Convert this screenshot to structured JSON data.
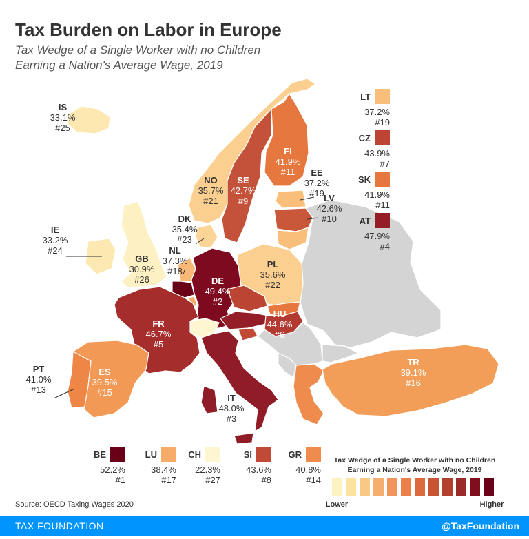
{
  "title": "Tax Burden on Labor in Europe",
  "subtitle_line1": "Tax Wedge of a Single Worker with no Children",
  "subtitle_line2": "Earning a Nation's Average Wage, 2019",
  "source": "Source: OECD Taxing Wages 2020",
  "footer": {
    "brand": "TAX FOUNDATION",
    "handle": "@TaxFoundation"
  },
  "colors": {
    "no_data": "#d4d4d4",
    "border": "#ffffff",
    "footer": "#0094ff",
    "text_dark": "#333333",
    "text_light": "#ffffff"
  },
  "legend": {
    "title_line1": "Tax Wedge of a Single Worker with no Children",
    "title_line2": "Earning a Nation's Average Wage, 2019",
    "low_label": "Lower",
    "high_label": "Higher",
    "scale": [
      "#fdf3c0",
      "#fce4a0",
      "#f9c884",
      "#f6ae6e",
      "#f2935a",
      "#ec7e48",
      "#dc6a3c",
      "#c95434",
      "#b3402e",
      "#9a2a2a",
      "#800f1e",
      "#6a0018"
    ]
  },
  "countries": [
    {
      "code": "IS",
      "value": "33.1%",
      "rank": "#25",
      "color": "#fce8b0"
    },
    {
      "code": "NO",
      "value": "35.7%",
      "rank": "#21",
      "color": "#fbcf90"
    },
    {
      "code": "SE",
      "value": "42.7%",
      "rank": "#9",
      "color": "#c4523a"
    },
    {
      "code": "FI",
      "value": "41.9%",
      "rank": "#11",
      "color": "#e6783f"
    },
    {
      "code": "EE",
      "value": "37.2%",
      "rank": "#19",
      "color": "#f9bf7a"
    },
    {
      "code": "LV",
      "value": "42.6%",
      "rank": "#10",
      "color": "#c9573a"
    },
    {
      "code": "LT",
      "value": "37.2%",
      "rank": "#19",
      "color": "#f9bf7a"
    },
    {
      "code": "DK",
      "value": "35.4%",
      "rank": "#23",
      "color": "#fbd598"
    },
    {
      "code": "IE",
      "value": "33.2%",
      "rank": "#24",
      "color": "#fce8b0"
    },
    {
      "code": "GB",
      "value": "30.9%",
      "rank": "#26",
      "color": "#fdf1c4"
    },
    {
      "code": "NL",
      "value": "37.3%",
      "rank": "#18",
      "color": "#f8b878"
    },
    {
      "code": "DE",
      "value": "49.4%",
      "rank": "#2",
      "color": "#7d0a1f"
    },
    {
      "code": "PL",
      "value": "35.6%",
      "rank": "#22",
      "color": "#fbcf90"
    },
    {
      "code": "FR",
      "value": "46.7%",
      "rank": "#5",
      "color": "#a52d2c"
    },
    {
      "code": "HU",
      "value": "44.6%",
      "rank": "#6",
      "color": "#b33a30"
    },
    {
      "code": "PT",
      "value": "41.0%",
      "rank": "#13",
      "color": "#ee8646"
    },
    {
      "code": "ES",
      "value": "39.5%",
      "rank": "#15",
      "color": "#f29a55"
    },
    {
      "code": "IT",
      "value": "48.0%",
      "rank": "#3",
      "color": "#8f1c26"
    },
    {
      "code": "TR",
      "value": "39.1%",
      "rank": "#16",
      "color": "#f29e58"
    },
    {
      "code": "CZ",
      "value": "43.9%",
      "rank": "#7",
      "color": "#bb4532"
    },
    {
      "code": "SK",
      "value": "41.9%",
      "rank": "#11",
      "color": "#e6783f"
    },
    {
      "code": "AT",
      "value": "47.9%",
      "rank": "#4",
      "color": "#931e27"
    },
    {
      "code": "BE",
      "value": "52.2%",
      "rank": "#1",
      "color": "#6a0018"
    },
    {
      "code": "LU",
      "value": "38.4%",
      "rank": "#17",
      "color": "#f6ac68"
    },
    {
      "code": "CH",
      "value": "22.3%",
      "rank": "#27",
      "color": "#fdf6d0"
    },
    {
      "code": "SI",
      "value": "43.6%",
      "rank": "#8",
      "color": "#c04a35"
    },
    {
      "code": "GR",
      "value": "40.8%",
      "rank": "#14",
      "color": "#ef8b4c"
    }
  ]
}
